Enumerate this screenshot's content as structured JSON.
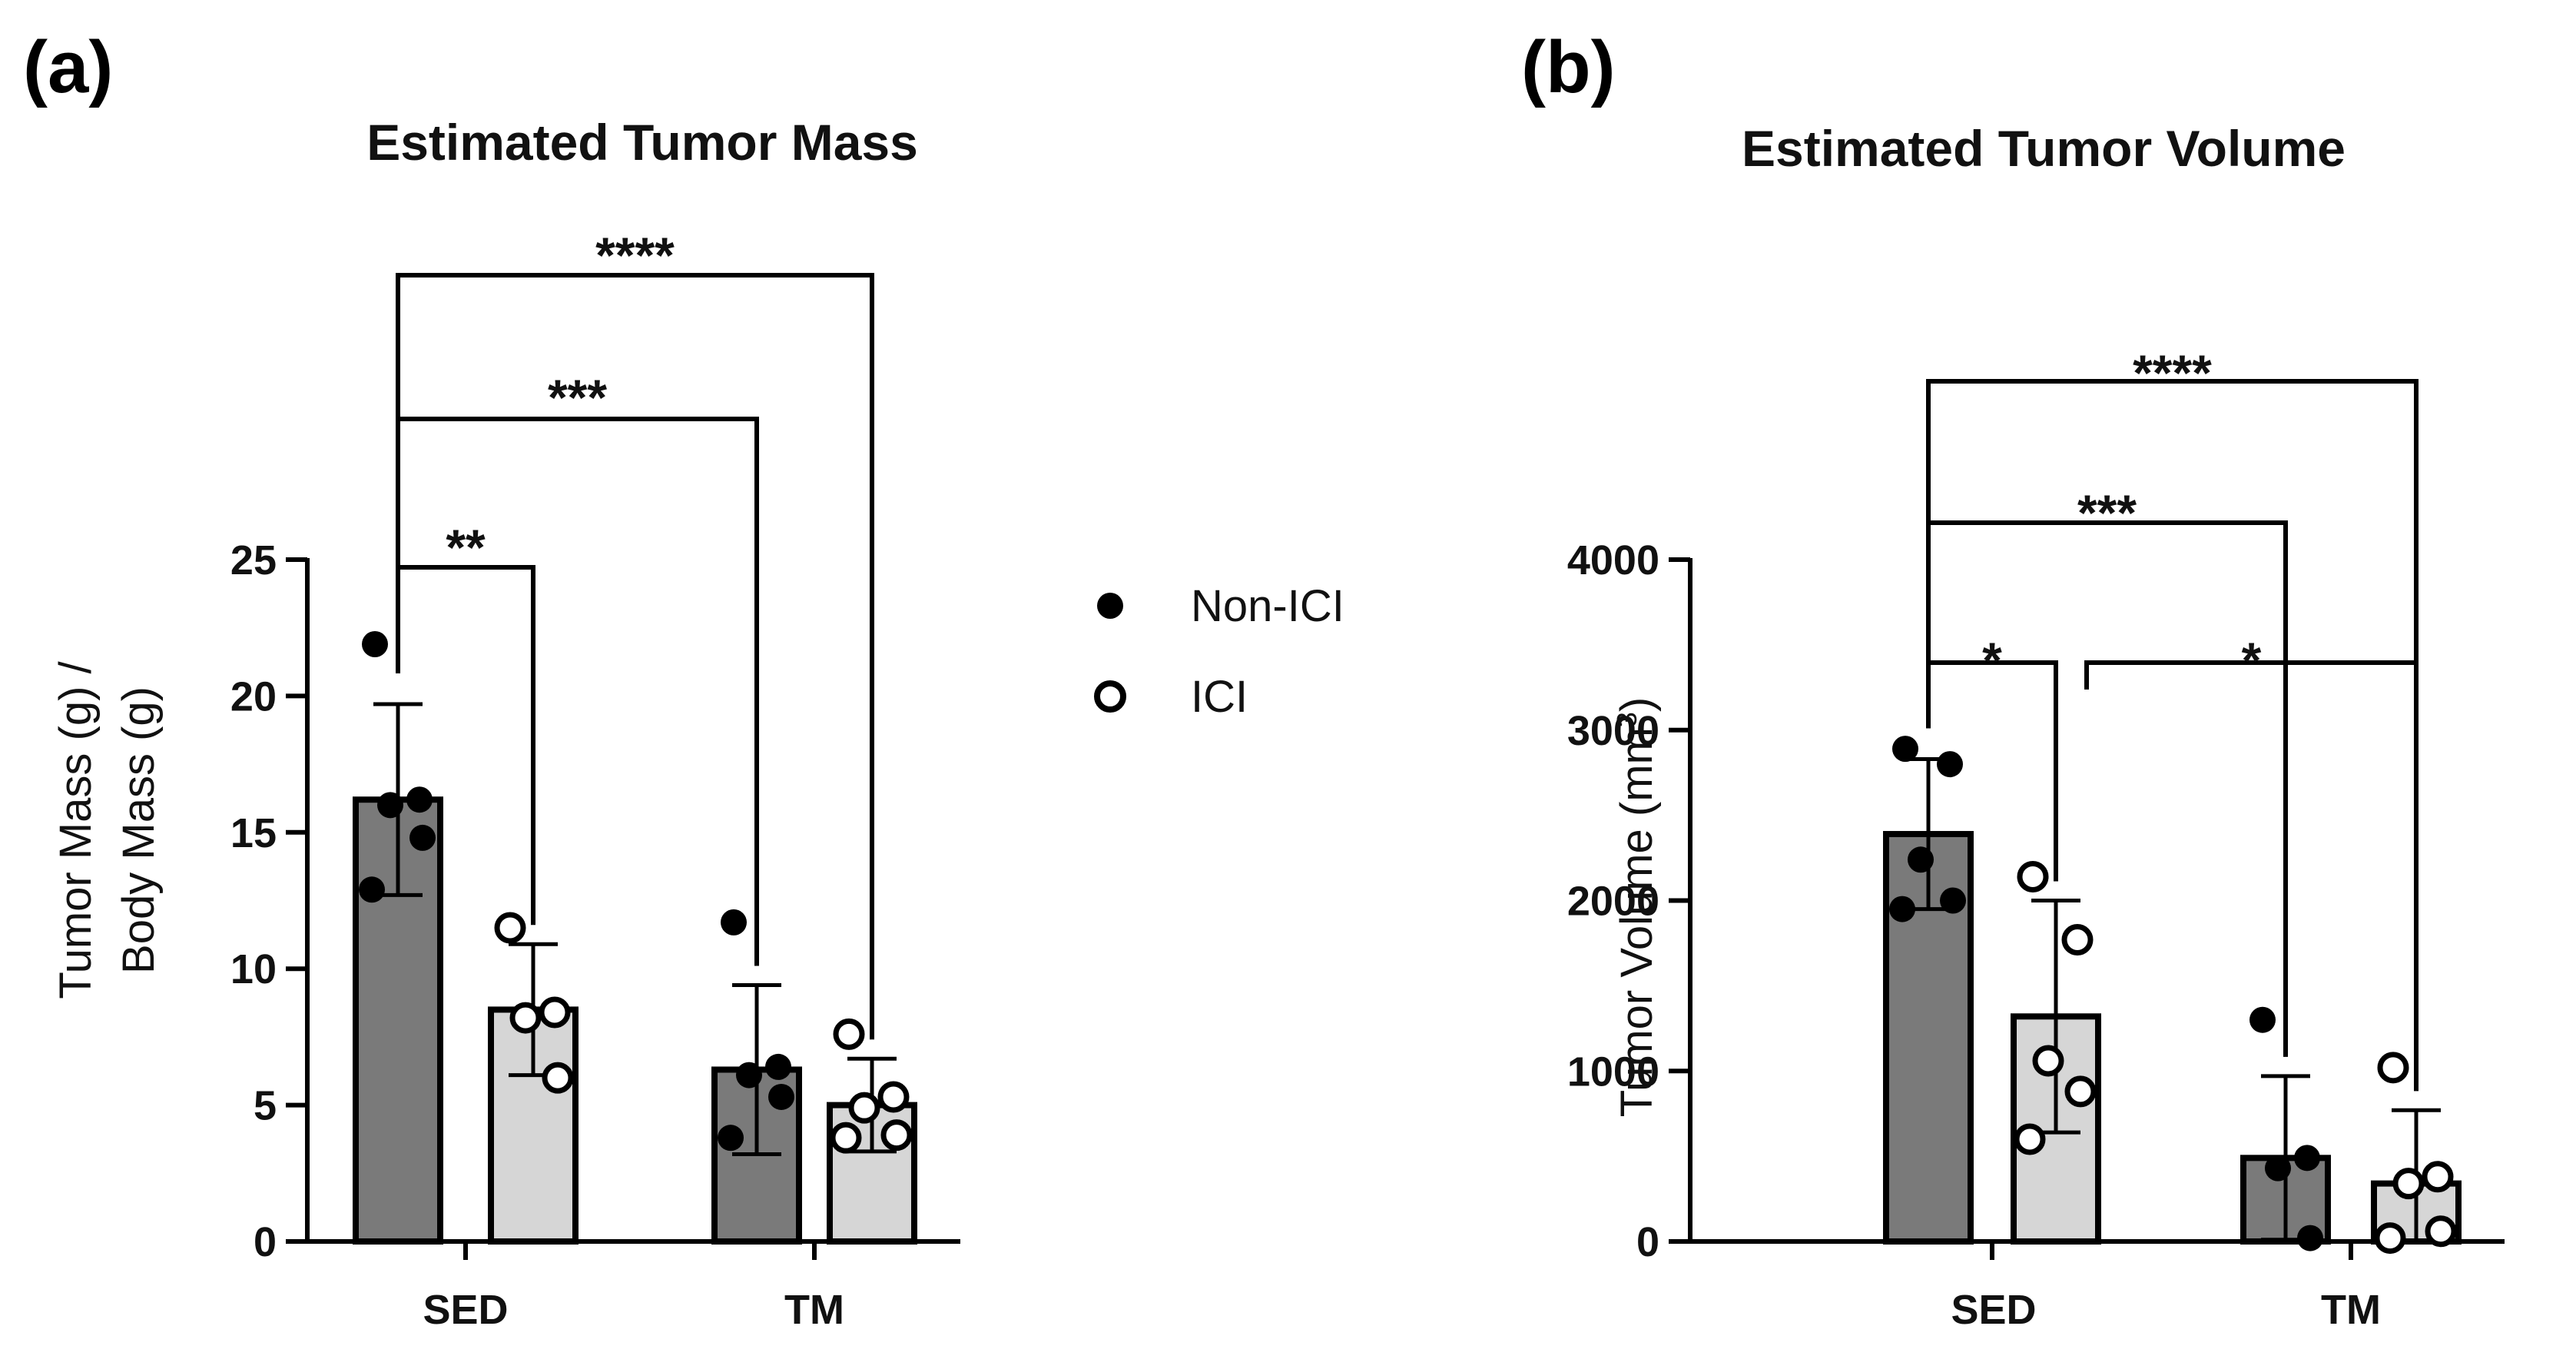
{
  "legend": {
    "items": [
      {
        "label": "Non-ICI",
        "marker": "filled-circle"
      },
      {
        "label": "ICI",
        "marker": "open-circle"
      }
    ]
  },
  "colors": {
    "non_ici_bar": "#7a7a7a",
    "ici_bar": "#d6d6d6",
    "outline": "#000000"
  },
  "chart_data": [
    {
      "panel_label": "(a)",
      "type": "bar",
      "title": "Estimated Tumor Mass",
      "ylabel_lines": [
        "Tumor Mass (g) /",
        "Body Mass (g)"
      ],
      "xlabel": "",
      "ylim": [
        0,
        25
      ],
      "yticks": [
        0,
        5,
        10,
        15,
        20,
        25
      ],
      "categories": [
        "SED",
        "TM"
      ],
      "series": [
        {
          "name": "Non-ICI",
          "values": [
            16.2,
            6.3
          ],
          "sd": [
            3.5,
            3.1
          ],
          "points": [
            [
              21.9,
              16.2,
              16.0,
              14.8,
              12.9
            ],
            [
              11.7,
              6.4,
              6.1,
              5.3,
              3.8
            ]
          ]
        },
        {
          "name": "ICI",
          "values": [
            8.5,
            5.0
          ],
          "sd": [
            2.4,
            1.7
          ],
          "points": [
            [
              11.5,
              8.4,
              8.2,
              6.0
            ],
            [
              7.6,
              5.3,
              4.9,
              3.9,
              3.8
            ]
          ]
        }
      ],
      "significance": [
        {
          "label": "**",
          "from": "SED Non-ICI",
          "to": "SED ICI"
        },
        {
          "label": "***",
          "from": "SED Non-ICI",
          "to": "TM Non-ICI"
        },
        {
          "label": "****",
          "from": "SED Non-ICI",
          "to": "TM ICI"
        }
      ]
    },
    {
      "panel_label": "(b)",
      "type": "bar",
      "title": "Estimated Tumor Volume",
      "ylabel_main": "Tumor Volume (mm",
      "ylabel_sup": "3",
      "ylabel_end": ")",
      "xlabel": "",
      "ylim": [
        0,
        4000
      ],
      "yticks": [
        0,
        1000,
        2000,
        3000,
        4000
      ],
      "categories": [
        "SED",
        "TM"
      ],
      "series": [
        {
          "name": "Non-ICI",
          "values": [
            2390,
            490
          ],
          "sd": [
            440,
            480
          ],
          "points": [
            [
              2890,
              2800,
              2240,
              2000,
              1950
            ],
            [
              1300,
              490,
              430,
              20
            ]
          ]
        },
        {
          "name": "ICI",
          "values": [
            1320,
            340
          ],
          "sd": [
            680,
            430
          ],
          "points": [
            [
              2140,
              1770,
              1060,
              880,
              600
            ],
            [
              1020,
              380,
              340,
              60,
              20
            ]
          ]
        }
      ],
      "significance": [
        {
          "label": "*",
          "from": "SED Non-ICI",
          "to": "SED ICI"
        },
        {
          "label": "*",
          "from": "SED ICI",
          "to": "TM ICI"
        },
        {
          "label": "***",
          "from": "SED Non-ICI",
          "to": "TM Non-ICI"
        },
        {
          "label": "****",
          "from": "SED Non-ICI",
          "to": "TM ICI"
        }
      ]
    }
  ]
}
